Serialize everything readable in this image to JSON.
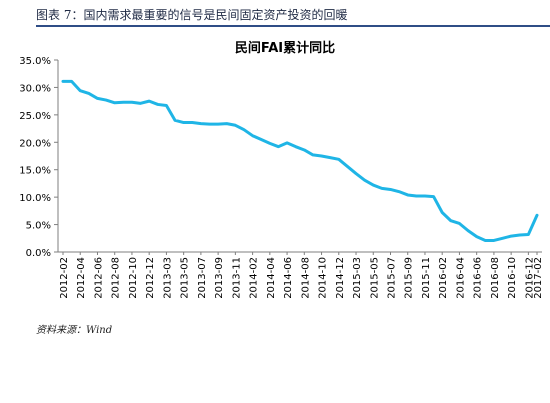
{
  "figure": {
    "title": "图表 7：国内需求最重要的信号是民间固定资产投资的回暖",
    "source": "资料来源：Wind"
  },
  "chart_data": {
    "type": "line",
    "title": "民间FAI累计同比",
    "xlabel": "",
    "ylabel": "",
    "ylim": [
      0,
      35
    ],
    "y_ticks": [
      "0.0%",
      "5.0%",
      "10.0%",
      "15.0%",
      "20.0%",
      "25.0%",
      "30.0%",
      "35.0%"
    ],
    "grid": false,
    "legend": "none",
    "line_color": "#1fb5e6",
    "x": [
      "2012-02",
      "2012-03",
      "2012-04",
      "2012-05",
      "2012-06",
      "2012-07",
      "2012-08",
      "2012-09",
      "2012-10",
      "2012-11",
      "2012-12",
      "2013-02",
      "2013-03",
      "2013-04",
      "2013-05",
      "2013-06",
      "2013-07",
      "2013-08",
      "2013-09",
      "2013-10",
      "2013-11",
      "2013-12",
      "2014-02",
      "2014-03",
      "2014-04",
      "2014-05",
      "2014-06",
      "2014-07",
      "2014-08",
      "2014-09",
      "2014-10",
      "2014-11",
      "2014-12",
      "2015-02",
      "2015-03",
      "2015-04",
      "2015-05",
      "2015-06",
      "2015-07",
      "2015-08",
      "2015-09",
      "2015-10",
      "2015-11",
      "2015-12",
      "2016-02",
      "2016-03",
      "2016-04",
      "2016-05",
      "2016-06",
      "2016-07",
      "2016-08",
      "2016-09",
      "2016-10",
      "2016-11",
      "2016-12",
      "2017-02"
    ],
    "x_tick_labels": [
      "2012-02",
      "2012-04",
      "2012-06",
      "2012-08",
      "2012-10",
      "2012-12",
      "2013-03",
      "2013-05",
      "2013-07",
      "2013-09",
      "2013-11",
      "2014-02",
      "2014-04",
      "2014-06",
      "2014-08",
      "2014-10",
      "2014-12",
      "2015-03",
      "2015-05",
      "2015-07",
      "2015-09",
      "2015-11",
      "2016-02",
      "2016-04",
      "2016-06",
      "2016-08",
      "2016-10",
      "2016-12",
      "2017-02"
    ],
    "series": [
      {
        "name": "",
        "values": [
          31.1,
          31.1,
          29.4,
          28.9,
          28.0,
          27.7,
          27.2,
          27.3,
          27.3,
          27.1,
          27.5,
          26.9,
          26.7,
          24.0,
          23.6,
          23.6,
          23.4,
          23.3,
          23.3,
          23.4,
          23.1,
          22.3,
          21.2,
          20.5,
          19.8,
          19.2,
          19.9,
          19.2,
          18.6,
          17.7,
          17.5,
          17.2,
          16.9,
          15.6,
          14.3,
          13.1,
          12.2,
          11.6,
          11.4,
          11.0,
          10.4,
          10.2,
          10.2,
          10.1,
          7.2,
          5.7,
          5.2,
          3.9,
          2.8,
          2.1,
          2.1,
          2.5,
          2.9,
          3.1,
          3.2,
          6.7
        ]
      }
    ]
  }
}
